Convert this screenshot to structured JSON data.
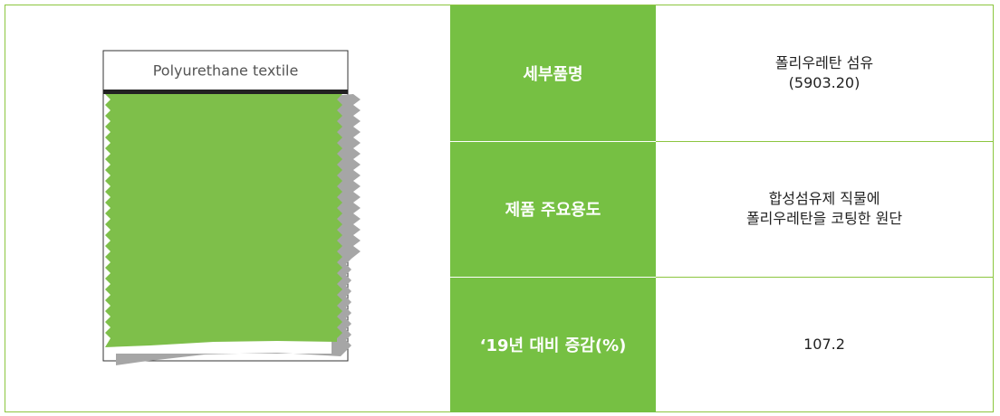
{
  "swatch": {
    "label": "Polyurethane textile"
  },
  "table": {
    "rows": [
      {
        "label": "세부품명",
        "value": [
          "폴리우레탄 섬유",
          "(5903.20)"
        ]
      },
      {
        "label": "제품 주요용도",
        "value": [
          "합성섬유제 직물에",
          "폴리우레탄을 코팅한 원단"
        ]
      },
      {
        "label": "‘19년 대비 증감(%)",
        "value": [
          "107.2"
        ]
      }
    ]
  }
}
